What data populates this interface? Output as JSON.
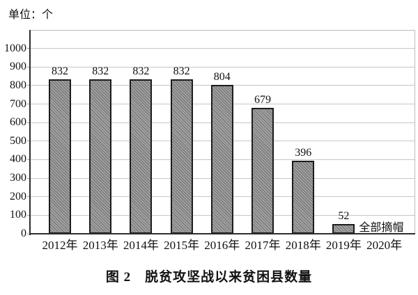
{
  "unit_label": "单位：个",
  "title": "图 2　脱贫攻坚战以来贫困县数量",
  "chart_data": {
    "type": "bar",
    "title": "图 2　脱贫攻坚战以来贫困县数量",
    "unit": "单位：个",
    "categories": [
      "2012年",
      "2013年",
      "2014年",
      "2015年",
      "2016年",
      "2017年",
      "2018年",
      "2019年",
      "2020年"
    ],
    "values": [
      832,
      832,
      832,
      832,
      804,
      679,
      396,
      52,
      null
    ],
    "annotation": {
      "category": "2019年",
      "text": "全部摘帽"
    },
    "xlabel": "",
    "ylabel": "",
    "ylim": [
      0,
      1100
    ],
    "yticks": [
      0,
      100,
      200,
      300,
      400,
      500,
      600,
      700,
      800,
      900,
      1000
    ],
    "grid": true,
    "legend": "none",
    "colors": {
      "bar_fill": "#a2a2a2",
      "bar_hatch": "#6e6e6e",
      "bar_border": "#1c1c1c",
      "grid_line": "#c6c6c6",
      "frame": "#bdbdbd",
      "axis": "#2e2e2e",
      "text": "#111111"
    }
  }
}
